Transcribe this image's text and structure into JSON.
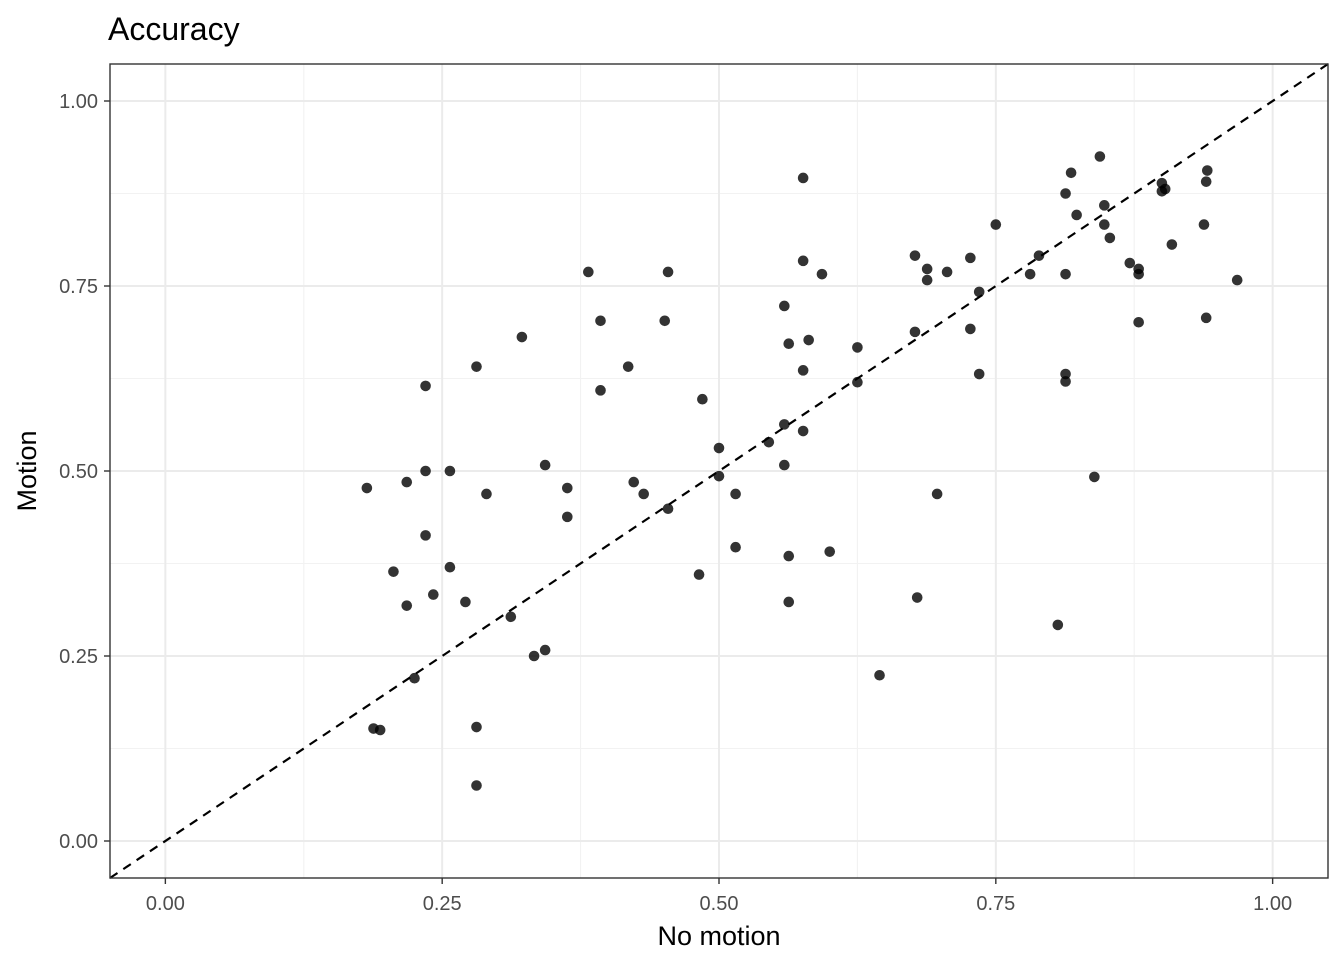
{
  "chart_data": {
    "type": "scatter",
    "title": "Accuracy",
    "xlabel": "No motion",
    "ylabel": "Motion",
    "xlim": [
      -0.05,
      1.05
    ],
    "ylim": [
      -0.05,
      1.05
    ],
    "x_ticks": [
      0.0,
      0.25,
      0.5,
      0.75,
      1.0
    ],
    "x_tick_labels": [
      "0.00",
      "0.25",
      "0.50",
      "0.75",
      "1.00"
    ],
    "y_ticks": [
      0.0,
      0.25,
      0.5,
      0.75,
      1.0
    ],
    "y_tick_labels": [
      "0.00",
      "0.25",
      "0.50",
      "0.75",
      "1.00"
    ],
    "grid": true,
    "reference_line": {
      "slope": 1,
      "intercept": 0,
      "style": "dashed"
    },
    "point_color": "#000000",
    "points": [
      {
        "x": 0.182,
        "y": 0.477
      },
      {
        "x": 0.188,
        "y": 0.152
      },
      {
        "x": 0.194,
        "y": 0.15
      },
      {
        "x": 0.206,
        "y": 0.364
      },
      {
        "x": 0.218,
        "y": 0.485
      },
      {
        "x": 0.218,
        "y": 0.318
      },
      {
        "x": 0.225,
        "y": 0.22
      },
      {
        "x": 0.235,
        "y": 0.615
      },
      {
        "x": 0.235,
        "y": 0.5
      },
      {
        "x": 0.235,
        "y": 0.413
      },
      {
        "x": 0.242,
        "y": 0.333
      },
      {
        "x": 0.257,
        "y": 0.5
      },
      {
        "x": 0.257,
        "y": 0.37
      },
      {
        "x": 0.271,
        "y": 0.323
      },
      {
        "x": 0.281,
        "y": 0.641
      },
      {
        "x": 0.281,
        "y": 0.154
      },
      {
        "x": 0.281,
        "y": 0.075
      },
      {
        "x": 0.29,
        "y": 0.469
      },
      {
        "x": 0.312,
        "y": 0.303
      },
      {
        "x": 0.322,
        "y": 0.681
      },
      {
        "x": 0.333,
        "y": 0.25
      },
      {
        "x": 0.343,
        "y": 0.508
      },
      {
        "x": 0.343,
        "y": 0.258
      },
      {
        "x": 0.363,
        "y": 0.477
      },
      {
        "x": 0.363,
        "y": 0.438
      },
      {
        "x": 0.382,
        "y": 0.769
      },
      {
        "x": 0.393,
        "y": 0.703
      },
      {
        "x": 0.393,
        "y": 0.609
      },
      {
        "x": 0.418,
        "y": 0.641
      },
      {
        "x": 0.423,
        "y": 0.485
      },
      {
        "x": 0.432,
        "y": 0.469
      },
      {
        "x": 0.451,
        "y": 0.703
      },
      {
        "x": 0.454,
        "y": 0.769
      },
      {
        "x": 0.454,
        "y": 0.449
      },
      {
        "x": 0.482,
        "y": 0.36
      },
      {
        "x": 0.485,
        "y": 0.597
      },
      {
        "x": 0.5,
        "y": 0.531
      },
      {
        "x": 0.5,
        "y": 0.493
      },
      {
        "x": 0.515,
        "y": 0.469
      },
      {
        "x": 0.515,
        "y": 0.397
      },
      {
        "x": 0.545,
        "y": 0.539
      },
      {
        "x": 0.559,
        "y": 0.723
      },
      {
        "x": 0.559,
        "y": 0.563
      },
      {
        "x": 0.559,
        "y": 0.508
      },
      {
        "x": 0.563,
        "y": 0.672
      },
      {
        "x": 0.563,
        "y": 0.385
      },
      {
        "x": 0.563,
        "y": 0.323
      },
      {
        "x": 0.576,
        "y": 0.896
      },
      {
        "x": 0.576,
        "y": 0.784
      },
      {
        "x": 0.576,
        "y": 0.636
      },
      {
        "x": 0.576,
        "y": 0.554
      },
      {
        "x": 0.581,
        "y": 0.677
      },
      {
        "x": 0.593,
        "y": 0.766
      },
      {
        "x": 0.6,
        "y": 0.391
      },
      {
        "x": 0.625,
        "y": 0.667
      },
      {
        "x": 0.625,
        "y": 0.62
      },
      {
        "x": 0.645,
        "y": 0.224
      },
      {
        "x": 0.677,
        "y": 0.791
      },
      {
        "x": 0.677,
        "y": 0.688
      },
      {
        "x": 0.679,
        "y": 0.329
      },
      {
        "x": 0.688,
        "y": 0.773
      },
      {
        "x": 0.688,
        "y": 0.758
      },
      {
        "x": 0.697,
        "y": 0.469
      },
      {
        "x": 0.706,
        "y": 0.769
      },
      {
        "x": 0.727,
        "y": 0.788
      },
      {
        "x": 0.727,
        "y": 0.692
      },
      {
        "x": 0.735,
        "y": 0.742
      },
      {
        "x": 0.735,
        "y": 0.631
      },
      {
        "x": 0.75,
        "y": 0.833
      },
      {
        "x": 0.781,
        "y": 0.766
      },
      {
        "x": 0.789,
        "y": 0.791
      },
      {
        "x": 0.806,
        "y": 0.292
      },
      {
        "x": 0.813,
        "y": 0.875
      },
      {
        "x": 0.813,
        "y": 0.766
      },
      {
        "x": 0.813,
        "y": 0.631
      },
      {
        "x": 0.813,
        "y": 0.621
      },
      {
        "x": 0.818,
        "y": 0.903
      },
      {
        "x": 0.823,
        "y": 0.846
      },
      {
        "x": 0.839,
        "y": 0.492
      },
      {
        "x": 0.844,
        "y": 0.925
      },
      {
        "x": 0.848,
        "y": 0.859
      },
      {
        "x": 0.848,
        "y": 0.833
      },
      {
        "x": 0.853,
        "y": 0.815
      },
      {
        "x": 0.871,
        "y": 0.781
      },
      {
        "x": 0.879,
        "y": 0.773
      },
      {
        "x": 0.879,
        "y": 0.766
      },
      {
        "x": 0.879,
        "y": 0.701
      },
      {
        "x": 0.9,
        "y": 0.889
      },
      {
        "x": 0.9,
        "y": 0.878
      },
      {
        "x": 0.903,
        "y": 0.881
      },
      {
        "x": 0.909,
        "y": 0.806
      },
      {
        "x": 0.938,
        "y": 0.833
      },
      {
        "x": 0.94,
        "y": 0.891
      },
      {
        "x": 0.94,
        "y": 0.707
      },
      {
        "x": 0.941,
        "y": 0.906
      },
      {
        "x": 0.968,
        "y": 0.758
      }
    ]
  }
}
